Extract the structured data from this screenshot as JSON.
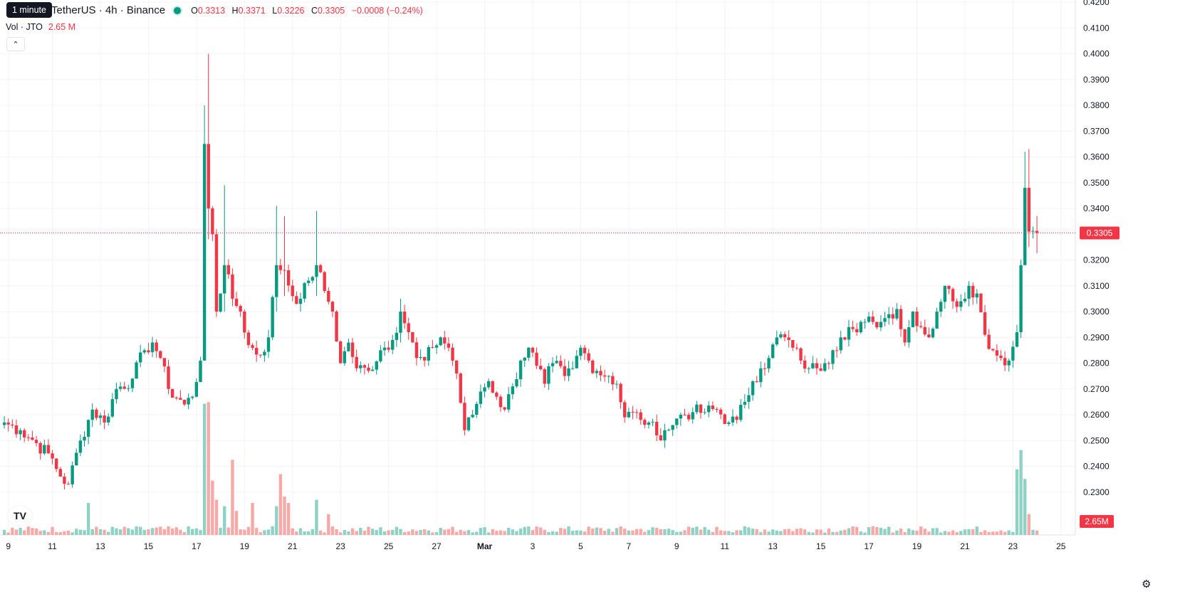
{
  "legend": {
    "symbol_title": "TetherUS · 4h · Binance",
    "tooltip": "1 minute",
    "o_key": "O",
    "o_val": "0.3313",
    "h_key": "H",
    "h_val": "0.3371",
    "l_key": "L",
    "l_val": "0.3226",
    "c_key": "C",
    "c_val": "0.3305",
    "change": "−0.0008 (−0.24%)",
    "vol_label": "Vol · JTO",
    "vol_value": "2.65 M"
  },
  "colors": {
    "up": "#089981",
    "down": "#f23645",
    "up_volume": "#8fd1c4",
    "down_volume": "#f7a9a7"
  },
  "icons": {
    "logo": "tradingview-logo-icon",
    "settings": "gear-icon",
    "collapse": "chevron-up-icon"
  },
  "chart_data": {
    "type": "candlestick",
    "y_axis": {
      "min": 0.22,
      "max": 0.42,
      "ticks": [
        "0.2300",
        "0.2400",
        "0.2500",
        "0.2600",
        "0.2700",
        "0.2800",
        "0.2900",
        "0.3000",
        "0.3100",
        "0.3200",
        "0.3300",
        "0.3400",
        "0.3500",
        "0.3600",
        "0.3700",
        "0.3800",
        "0.3900",
        "0.4000",
        "0.4100",
        "0.4200"
      ]
    },
    "x_axis": {
      "ticks": [
        {
          "label": "9",
          "idx": 1
        },
        {
          "label": "11",
          "idx": 12
        },
        {
          "label": "13",
          "idx": 24
        },
        {
          "label": "15",
          "idx": 36
        },
        {
          "label": "17",
          "idx": 48
        },
        {
          "label": "19",
          "idx": 60
        },
        {
          "label": "21",
          "idx": 72
        },
        {
          "label": "23",
          "idx": 84
        },
        {
          "label": "25",
          "idx": 96
        },
        {
          "label": "27",
          "idx": 108
        },
        {
          "label": "Mar",
          "idx": 120
        },
        {
          "label": "3",
          "idx": 132
        },
        {
          "label": "5",
          "idx": 144
        },
        {
          "label": "7",
          "idx": 156
        },
        {
          "label": "9",
          "idx": 168
        },
        {
          "label": "11",
          "idx": 180
        },
        {
          "label": "13",
          "idx": 192
        },
        {
          "label": "15",
          "idx": 204
        },
        {
          "label": "17",
          "idx": 216
        },
        {
          "label": "19",
          "idx": 228
        },
        {
          "label": "21",
          "idx": 240
        },
        {
          "label": "23",
          "idx": 252
        },
        {
          "label": "25",
          "idx": 264
        }
      ]
    },
    "last_price": "0.3305",
    "last_volume": "2.65M",
    "anchors": [
      [
        0,
        0.257
      ],
      [
        4,
        0.254
      ],
      [
        8,
        0.249
      ],
      [
        12,
        0.243
      ],
      [
        14,
        0.236
      ],
      [
        16,
        0.233
      ],
      [
        19,
        0.25
      ],
      [
        22,
        0.262
      ],
      [
        25,
        0.257
      ],
      [
        28,
        0.27
      ],
      [
        32,
        0.274
      ],
      [
        35,
        0.285
      ],
      [
        37,
        0.288
      ],
      [
        39,
        0.282
      ],
      [
        41,
        0.27
      ],
      [
        45,
        0.264
      ],
      [
        47,
        0.267
      ],
      [
        49,
        0.281
      ],
      [
        50,
        0.365
      ],
      [
        51,
        0.34
      ],
      [
        52,
        0.33
      ],
      [
        53,
        0.3
      ],
      [
        55,
        0.318
      ],
      [
        57,
        0.305
      ],
      [
        59,
        0.3
      ],
      [
        61,
        0.287
      ],
      [
        64,
        0.283
      ],
      [
        66,
        0.29
      ],
      [
        68,
        0.318
      ],
      [
        70,
        0.316
      ],
      [
        72,
        0.306
      ],
      [
        74,
        0.305
      ],
      [
        76,
        0.312
      ],
      [
        78,
        0.318
      ],
      [
        80,
        0.308
      ],
      [
        82,
        0.3
      ],
      [
        84,
        0.28
      ],
      [
        86,
        0.288
      ],
      [
        88,
        0.278
      ],
      [
        91,
        0.277
      ],
      [
        94,
        0.285
      ],
      [
        97,
        0.289
      ],
      [
        99,
        0.3
      ],
      [
        101,
        0.292
      ],
      [
        103,
        0.282
      ],
      [
        105,
        0.281
      ],
      [
        107,
        0.286
      ],
      [
        109,
        0.29
      ],
      [
        111,
        0.286
      ],
      [
        113,
        0.276
      ],
      [
        115,
        0.254
      ],
      [
        117,
        0.26
      ],
      [
        119,
        0.269
      ],
      [
        121,
        0.273
      ],
      [
        123,
        0.267
      ],
      [
        125,
        0.262
      ],
      [
        127,
        0.271
      ],
      [
        129,
        0.281
      ],
      [
        131,
        0.286
      ],
      [
        133,
        0.279
      ],
      [
        135,
        0.272
      ],
      [
        137,
        0.28
      ],
      [
        140,
        0.275
      ],
      [
        142,
        0.278
      ],
      [
        144,
        0.286
      ],
      [
        146,
        0.281
      ],
      [
        148,
        0.277
      ],
      [
        151,
        0.275
      ],
      [
        153,
        0.272
      ],
      [
        155,
        0.259
      ],
      [
        157,
        0.261
      ],
      [
        159,
        0.258
      ],
      [
        161,
        0.257
      ],
      [
        163,
        0.252
      ],
      [
        165,
        0.254
      ],
      [
        167,
        0.256
      ],
      [
        169,
        0.26
      ],
      [
        172,
        0.261
      ],
      [
        175,
        0.261
      ],
      [
        178,
        0.262
      ],
      [
        181,
        0.257
      ],
      [
        183,
        0.258
      ],
      [
        185,
        0.265
      ],
      [
        187,
        0.273
      ],
      [
        189,
        0.278
      ],
      [
        191,
        0.282
      ],
      [
        193,
        0.29
      ],
      [
        195,
        0.29
      ],
      [
        197,
        0.286
      ],
      [
        199,
        0.281
      ],
      [
        201,
        0.278
      ],
      [
        203,
        0.278
      ],
      [
        205,
        0.28
      ],
      [
        207,
        0.285
      ],
      [
        209,
        0.29
      ],
      [
        211,
        0.294
      ],
      [
        213,
        0.292
      ],
      [
        215,
        0.296
      ],
      [
        217,
        0.296
      ],
      [
        219,
        0.296
      ],
      [
        221,
        0.299
      ],
      [
        223,
        0.301
      ],
      [
        225,
        0.288
      ],
      [
        227,
        0.3
      ],
      [
        229,
        0.294
      ],
      [
        231,
        0.29
      ],
      [
        233,
        0.3
      ],
      [
        235,
        0.31
      ],
      [
        237,
        0.304
      ],
      [
        239,
        0.304
      ],
      [
        241,
        0.31
      ],
      [
        243,
        0.307
      ],
      [
        245,
        0.291
      ],
      [
        247,
        0.285
      ],
      [
        249,
        0.282
      ],
      [
        251,
        0.281
      ],
      [
        253,
        0.292
      ],
      [
        254,
        0.318
      ],
      [
        255,
        0.348
      ],
      [
        256,
        0.331
      ],
      [
        257,
        0.3313
      ],
      [
        258,
        0.3305
      ]
    ],
    "spikes": [
      {
        "idx": 50,
        "high": 0.38,
        "low": 0.281
      },
      {
        "idx": 51,
        "high": 0.4,
        "low": 0.328
      },
      {
        "idx": 55,
        "high": 0.349,
        "low": 0.3
      },
      {
        "idx": 68,
        "high": 0.341,
        "low": 0.3
      },
      {
        "idx": 70,
        "high": 0.337,
        "low": 0.306
      },
      {
        "idx": 78,
        "high": 0.339,
        "low": 0.306
      },
      {
        "idx": 99,
        "high": 0.305,
        "low": 0.288
      },
      {
        "idx": 255,
        "high": 0.362,
        "low": 0.329
      },
      {
        "idx": 256,
        "high": 0.363,
        "low": 0.325
      },
      {
        "idx": 258,
        "high": 0.3371,
        "low": 0.3226
      }
    ],
    "volume_spikes": [
      {
        "idx": 50,
        "rel": 0.82
      },
      {
        "idx": 51,
        "rel": 0.83
      },
      {
        "idx": 52,
        "rel": 0.34
      },
      {
        "idx": 53,
        "rel": 0.22
      },
      {
        "idx": 55,
        "rel": 0.18
      },
      {
        "idx": 57,
        "rel": 0.47
      },
      {
        "idx": 58,
        "rel": 0.15
      },
      {
        "idx": 62,
        "rel": 0.2
      },
      {
        "idx": 68,
        "rel": 0.18
      },
      {
        "idx": 69,
        "rel": 0.38
      },
      {
        "idx": 70,
        "rel": 0.24
      },
      {
        "idx": 71,
        "rel": 0.2
      },
      {
        "idx": 78,
        "rel": 0.22
      },
      {
        "idx": 81,
        "rel": 0.13
      },
      {
        "idx": 21,
        "rel": 0.2
      },
      {
        "idx": 253,
        "rel": 0.41
      },
      {
        "idx": 254,
        "rel": 0.53
      },
      {
        "idx": 255,
        "rel": 0.35
      },
      {
        "idx": 256,
        "rel": 0.13
      }
    ]
  }
}
